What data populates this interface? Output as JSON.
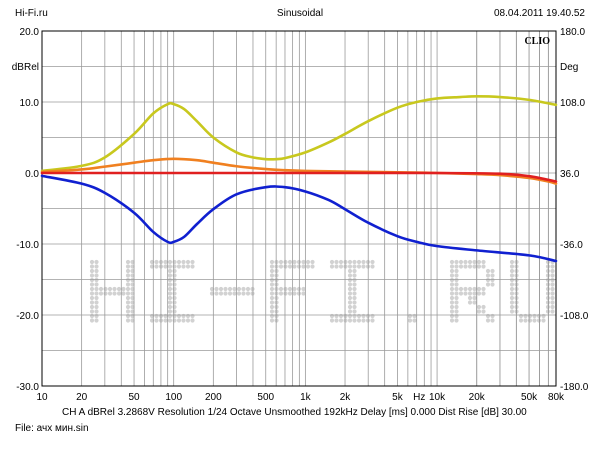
{
  "header": {
    "left": "Hi-Fi.ru",
    "center": "Sinusoidal",
    "right": "08.04.2011 19.40.52"
  },
  "brand": "CLIO",
  "watermark_text": "HI-FI.RU",
  "footer": {
    "line1": "CH A   dBRel 3.2868V   Resolution 1/24 Octave   Unsmoothed   192kHz   Delay [ms] 0.000   Dist Rise [dB] 30.00",
    "line2": "File: ачх мин.sin"
  },
  "colors": {
    "background": "#ffffff",
    "grid": "#9a9a9a",
    "axes": "#000000"
  },
  "chart_data": {
    "type": "line",
    "x_scale": "log",
    "xlim": [
      10,
      80000
    ],
    "x_tick_labels": [
      {
        "value": 10,
        "label": "10"
      },
      {
        "value": 20,
        "label": "20"
      },
      {
        "value": 50,
        "label": "50"
      },
      {
        "value": 100,
        "label": "100"
      },
      {
        "value": 200,
        "label": "200"
      },
      {
        "value": 500,
        "label": "500"
      },
      {
        "value": 1000,
        "label": "1k"
      },
      {
        "value": 2000,
        "label": "2k"
      },
      {
        "value": 5000,
        "label": "5k"
      },
      {
        "value": 10000,
        "label": "10k"
      },
      {
        "value": 20000,
        "label": "20k"
      },
      {
        "value": 50000,
        "label": "50k"
      },
      {
        "value": 80000,
        "label": "80k"
      }
    ],
    "x_unit_label": "Hz",
    "ylabel_left": "dBRel",
    "ylim_left": [
      -30,
      20
    ],
    "y_left_ticks": [
      {
        "value": 20,
        "label": "20.0"
      },
      {
        "value": 10,
        "label": "10.0"
      },
      {
        "value": 0,
        "label": "0.0"
      },
      {
        "value": -10,
        "label": "-10.0"
      },
      {
        "value": -20,
        "label": "-20.0"
      },
      {
        "value": -30,
        "label": "-30.0"
      }
    ],
    "ylabel_right": "Deg",
    "ylim_right": [
      -180,
      180
    ],
    "y_right_ticks": [
      {
        "value": 180,
        "label": "180.0"
      },
      {
        "value": 108,
        "label": "108.0"
      },
      {
        "value": 36,
        "label": "36.0"
      },
      {
        "value": -36,
        "label": "-36.0"
      },
      {
        "value": -108,
        "label": "-108.0"
      },
      {
        "value": -180,
        "label": "-180.0"
      }
    ],
    "grid": true,
    "series": [
      {
        "color": "#c8c81e",
        "x": [
          10,
          20,
          30,
          50,
          70,
          90,
          100,
          120,
          150,
          200,
          300,
          400,
          500,
          600,
          700,
          1000,
          1500,
          2000,
          3000,
          5000,
          7000,
          10000,
          15000,
          20000,
          30000,
          50000,
          80000
        ],
        "y": [
          0.3,
          1.0,
          2.2,
          5.5,
          8.4,
          9.7,
          9.7,
          9.0,
          7.3,
          5.0,
          2.9,
          2.2,
          1.95,
          1.95,
          2.1,
          2.9,
          4.3,
          5.5,
          7.3,
          9.2,
          10.0,
          10.5,
          10.7,
          10.8,
          10.7,
          10.3,
          9.6
        ]
      },
      {
        "color": "#f08020",
        "x": [
          10,
          20,
          30,
          50,
          70,
          100,
          150,
          200,
          300,
          500,
          700,
          1000,
          2000,
          5000,
          10000,
          20000,
          30000,
          50000,
          70000,
          80000
        ],
        "y": [
          0.15,
          0.5,
          0.9,
          1.45,
          1.8,
          2.0,
          1.8,
          1.45,
          0.95,
          0.55,
          0.4,
          0.3,
          0.2,
          0.1,
          0.0,
          -0.15,
          -0.3,
          -0.7,
          -1.2,
          -1.5
        ]
      },
      {
        "color": "#e02020",
        "x": [
          10,
          100,
          1000,
          10000,
          30000,
          50000,
          80000
        ],
        "y": [
          0.0,
          0.0,
          0.0,
          0.0,
          -0.1,
          -0.45,
          -1.2
        ]
      },
      {
        "color": "#1020d0",
        "x": [
          10,
          20,
          30,
          50,
          70,
          90,
          100,
          120,
          150,
          200,
          300,
          500,
          700,
          1000,
          1500,
          2000,
          3000,
          5000,
          7000,
          10000,
          20000,
          50000,
          80000
        ],
        "y": [
          -0.4,
          -1.5,
          -2.8,
          -5.6,
          -8.3,
          -9.7,
          -9.7,
          -9.0,
          -7.2,
          -5.1,
          -3.0,
          -2.0,
          -2.0,
          -2.6,
          -3.8,
          -5.1,
          -7.0,
          -8.9,
          -9.7,
          -10.3,
          -10.9,
          -11.6,
          -12.4
        ]
      }
    ]
  }
}
